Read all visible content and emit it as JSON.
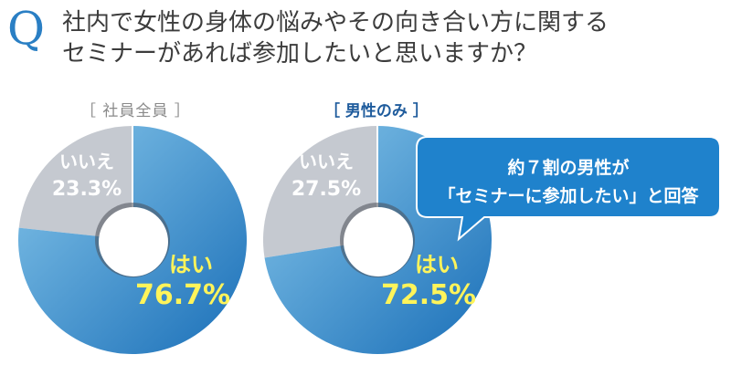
{
  "question": {
    "marker": "Q",
    "line1": "社内で女性の身体の悩みやその向き合い方に関する",
    "line2": "セミナーがあれば参加したいと思いますか？"
  },
  "callout": {
    "line1": "約７割の男性が",
    "line2": "「セミナーに参加したい」と回答"
  },
  "colors": {
    "yes_dark": "#1e7ac3",
    "yes_light": "#7fc1e6",
    "no": "#c5c9d0",
    "yes_text": "#fff45a",
    "callout_bg": "#1f82cc",
    "title": "#2a7fc4"
  },
  "chart_data": [
    {
      "type": "pie",
      "title": "［ 社員全員 ］",
      "slices": [
        {
          "label": "いいえ",
          "value": 23.3,
          "display": "23.3%"
        },
        {
          "label": "はい",
          "value": 76.7,
          "display": "76.7%"
        }
      ]
    },
    {
      "type": "pie",
      "title": "［ 男性のみ ］",
      "slices": [
        {
          "label": "いいえ",
          "value": 27.5,
          "display": "27.5%"
        },
        {
          "label": "はい",
          "value": 72.5,
          "display": "72.5%"
        }
      ]
    }
  ]
}
